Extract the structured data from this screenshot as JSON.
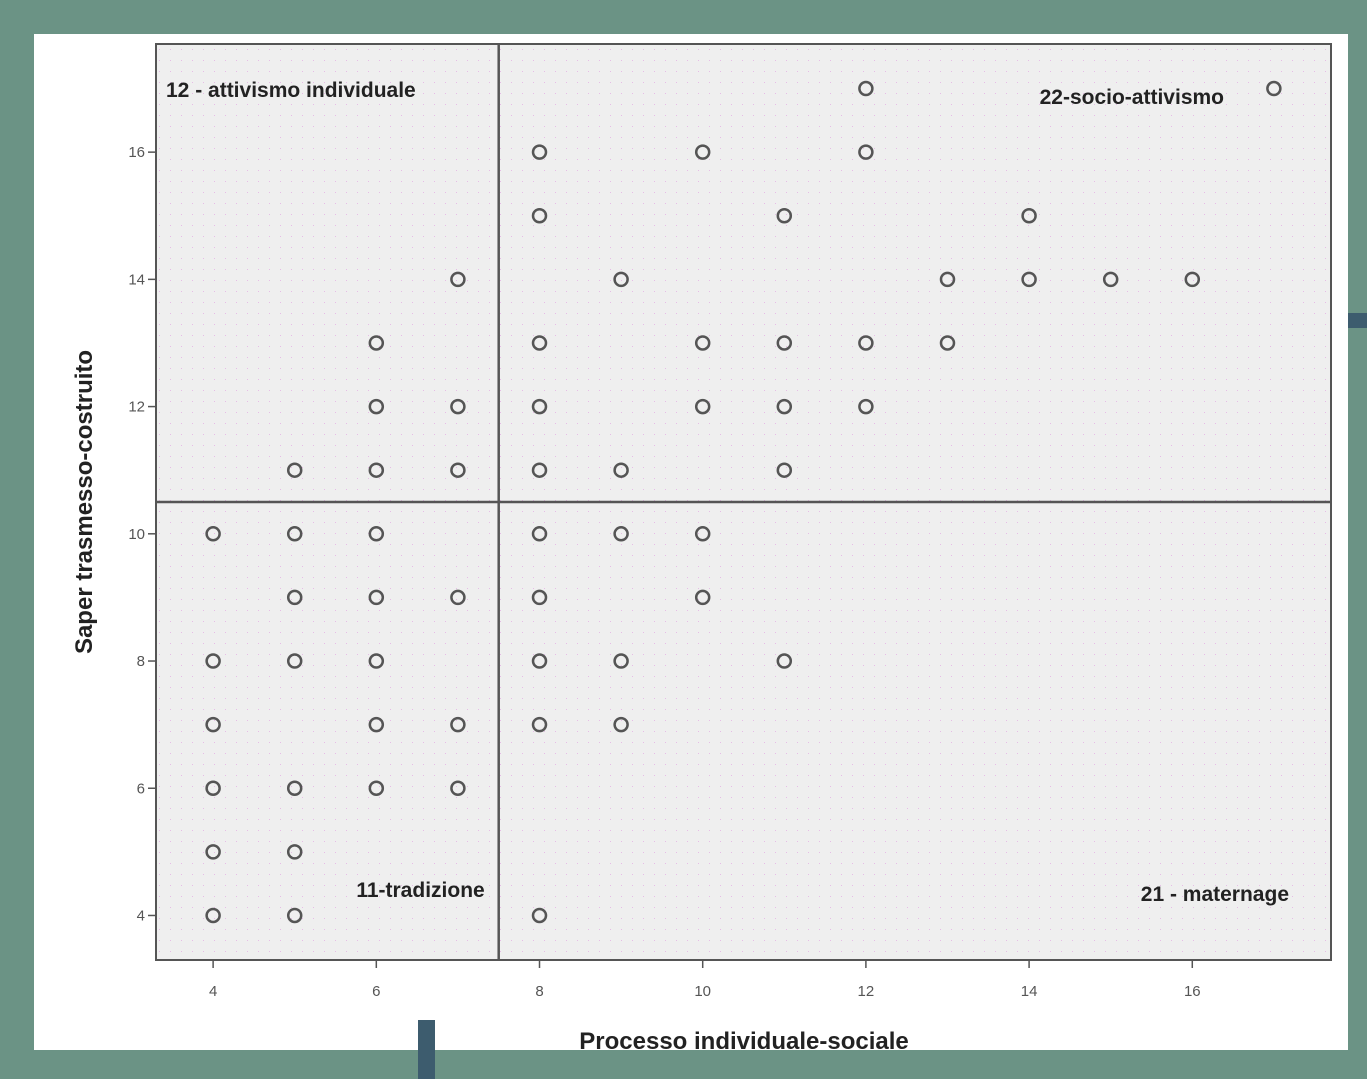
{
  "colors": {
    "page_background": "#6b9385",
    "panel_background": "#ffffff",
    "plot_background": "#efefef",
    "accent": "#3d5c6e",
    "marker": "#555555"
  },
  "chart_data": {
    "type": "scatter",
    "title": "",
    "xlabel": "Processo individuale-sociale",
    "ylabel": "Saper trasmesso-costruito",
    "xlim": [
      3.3,
      17.7
    ],
    "ylim": [
      3.3,
      17.7
    ],
    "xticks": [
      4,
      6,
      8,
      10,
      12,
      14,
      16
    ],
    "yticks": [
      4,
      6,
      8,
      10,
      12,
      14,
      16
    ],
    "grid": false,
    "reference_lines": {
      "x": 7.5,
      "y": 10.5
    },
    "quadrant_labels": [
      {
        "label": "12 - attivismo individuale",
        "position": "top-left"
      },
      {
        "label": "22-socio-attivismo",
        "position": "top-right"
      },
      {
        "label": "11-tradizione",
        "position": "bottom-left"
      },
      {
        "label": "21 - maternage",
        "position": "bottom-right"
      }
    ],
    "marker": "open-circle",
    "points": [
      [
        12,
        17
      ],
      [
        17,
        17
      ],
      [
        8,
        16
      ],
      [
        10,
        16
      ],
      [
        12,
        16
      ],
      [
        8,
        15
      ],
      [
        11,
        15
      ],
      [
        14,
        15
      ],
      [
        7,
        14
      ],
      [
        9,
        14
      ],
      [
        13,
        14
      ],
      [
        14,
        14
      ],
      [
        15,
        14
      ],
      [
        16,
        14
      ],
      [
        6,
        13
      ],
      [
        8,
        13
      ],
      [
        10,
        13
      ],
      [
        11,
        13
      ],
      [
        12,
        13
      ],
      [
        13,
        13
      ],
      [
        6,
        12
      ],
      [
        7,
        12
      ],
      [
        8,
        12
      ],
      [
        10,
        12
      ],
      [
        11,
        12
      ],
      [
        12,
        12
      ],
      [
        5,
        11
      ],
      [
        6,
        11
      ],
      [
        7,
        11
      ],
      [
        8,
        11
      ],
      [
        9,
        11
      ],
      [
        11,
        11
      ],
      [
        4,
        10
      ],
      [
        5,
        10
      ],
      [
        6,
        10
      ],
      [
        8,
        10
      ],
      [
        9,
        10
      ],
      [
        10,
        10
      ],
      [
        5,
        9
      ],
      [
        6,
        9
      ],
      [
        7,
        9
      ],
      [
        8,
        9
      ],
      [
        10,
        9
      ],
      [
        4,
        8
      ],
      [
        5,
        8
      ],
      [
        6,
        8
      ],
      [
        8,
        8
      ],
      [
        9,
        8
      ],
      [
        11,
        8
      ],
      [
        4,
        7
      ],
      [
        6,
        7
      ],
      [
        7,
        7
      ],
      [
        8,
        7
      ],
      [
        9,
        7
      ],
      [
        4,
        6
      ],
      [
        5,
        6
      ],
      [
        6,
        6
      ],
      [
        7,
        6
      ],
      [
        4,
        5
      ],
      [
        5,
        5
      ],
      [
        4,
        4
      ],
      [
        5,
        4
      ],
      [
        8,
        4
      ]
    ]
  }
}
